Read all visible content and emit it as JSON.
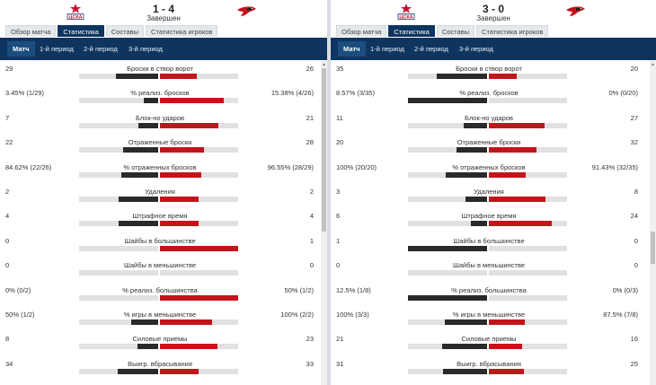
{
  "colors": {
    "home_bar": "#2a2a2a",
    "away_bar": "#c4141b",
    "nav_bg": "#0e3560"
  },
  "panels": [
    {
      "score": "1 - 4",
      "status": "Завершен",
      "home_logo": "cska-star-logo",
      "away_logo": "hawk-logo",
      "tabs": [
        {
          "label": "Обзор матча",
          "active": false
        },
        {
          "label": "Статистика",
          "active": true
        },
        {
          "label": "Составы",
          "active": false
        },
        {
          "label": "Статистика игроков",
          "active": false
        }
      ],
      "periods": [
        {
          "label": "Матч",
          "active": true
        },
        {
          "label": "1-й период",
          "active": false
        },
        {
          "label": "2-й период",
          "active": false
        },
        {
          "label": "3-й период",
          "active": false
        }
      ],
      "stats": [
        {
          "label": "Броски в створ ворот",
          "home": "29",
          "away": "26",
          "home_share": 0.527,
          "away_share": 0.473
        },
        {
          "label": "% реализ. бросков",
          "home": "3.45% (1/29)",
          "away": "15.38% (4/26)",
          "home_share": 0.183,
          "away_share": 0.817
        },
        {
          "label": "Блок-но ударов",
          "home": "7",
          "away": "21",
          "home_share": 0.25,
          "away_share": 0.75
        },
        {
          "label": "Отраженные броски",
          "home": "22",
          "away": "28",
          "home_share": 0.44,
          "away_share": 0.56
        },
        {
          "label": "% отраженных бросков",
          "home": "84.62% (22/26)",
          "away": "96.55% (28/29)",
          "home_share": 0.467,
          "away_share": 0.533
        },
        {
          "label": "Удаления",
          "home": "2",
          "away": "2",
          "home_share": 0.5,
          "away_share": 0.5
        },
        {
          "label": "Штрафное время",
          "home": "4",
          "away": "4",
          "home_share": 0.5,
          "away_share": 0.5
        },
        {
          "label": "Шайбы в большинстве",
          "home": "0",
          "away": "1",
          "home_share": 0.0,
          "away_share": 1.0
        },
        {
          "label": "Шайбы в меньшинстве",
          "home": "0",
          "away": "0",
          "home_share": 0.0,
          "away_share": 0.0
        },
        {
          "label": "% реализ. большинства",
          "home": "0% (0/2)",
          "away": "50% (1/2)",
          "home_share": 0.0,
          "away_share": 1.0
        },
        {
          "label": "% игры в меньшинстве",
          "home": "50% (1/2)",
          "away": "100% (2/2)",
          "home_share": 0.333,
          "away_share": 0.667
        },
        {
          "label": "Силовые приемы",
          "home": "8",
          "away": "23",
          "home_share": 0.258,
          "away_share": 0.742
        },
        {
          "label": "Выигр. вбрасывания",
          "home": "34",
          "away": "33",
          "home_share": 0.507,
          "away_share": 0.493
        }
      ]
    },
    {
      "score": "3 - 0",
      "status": "Завершен",
      "home_logo": "cska-star-logo",
      "away_logo": "hawk-logo",
      "tabs": [
        {
          "label": "Обзор матча",
          "active": false
        },
        {
          "label": "Статистика",
          "active": true
        },
        {
          "label": "Составы",
          "active": false
        },
        {
          "label": "Статистика игроков",
          "active": false
        }
      ],
      "periods": [
        {
          "label": "Матч",
          "active": true
        },
        {
          "label": "1-й период",
          "active": false
        },
        {
          "label": "2-й период",
          "active": false
        },
        {
          "label": "3-й период",
          "active": false
        }
      ],
      "stats": [
        {
          "label": "Броски в створ ворот",
          "home": "35",
          "away": "20",
          "home_share": 0.636,
          "away_share": 0.364
        },
        {
          "label": "% реализ. бросков",
          "home": "8.57% (3/35)",
          "away": "0% (0/20)",
          "home_share": 1.0,
          "away_share": 0.0
        },
        {
          "label": "Блок-но ударов",
          "home": "11",
          "away": "27",
          "home_share": 0.289,
          "away_share": 0.711
        },
        {
          "label": "Отраженные броски",
          "home": "20",
          "away": "32",
          "home_share": 0.385,
          "away_share": 0.615
        },
        {
          "label": "% отраженных бросков",
          "home": "100% (20/20)",
          "away": "91.43% (32/35)",
          "home_share": 0.522,
          "away_share": 0.478
        },
        {
          "label": "Удаления",
          "home": "3",
          "away": "8",
          "home_share": 0.273,
          "away_share": 0.727
        },
        {
          "label": "Штрафное время",
          "home": "6",
          "away": "24",
          "home_share": 0.2,
          "away_share": 0.8
        },
        {
          "label": "Шайбы в большинстве",
          "home": "1",
          "away": "0",
          "home_share": 1.0,
          "away_share": 0.0
        },
        {
          "label": "Шайбы в меньшинстве",
          "home": "0",
          "away": "0",
          "home_share": 0.0,
          "away_share": 0.0
        },
        {
          "label": "% реализ. большинства",
          "home": "12.5% (1/8)",
          "away": "0% (0/3)",
          "home_share": 1.0,
          "away_share": 0.0
        },
        {
          "label": "% игры в меньшинстве",
          "home": "100% (3/3)",
          "away": "87.5% (7/8)",
          "home_share": 0.533,
          "away_share": 0.467
        },
        {
          "label": "Силовые приемы",
          "home": "21",
          "away": "16",
          "home_share": 0.568,
          "away_share": 0.432
        },
        {
          "label": "Выигр. вбрасывания",
          "home": "31",
          "away": "25",
          "home_share": 0.554,
          "away_share": 0.446
        }
      ]
    }
  ]
}
